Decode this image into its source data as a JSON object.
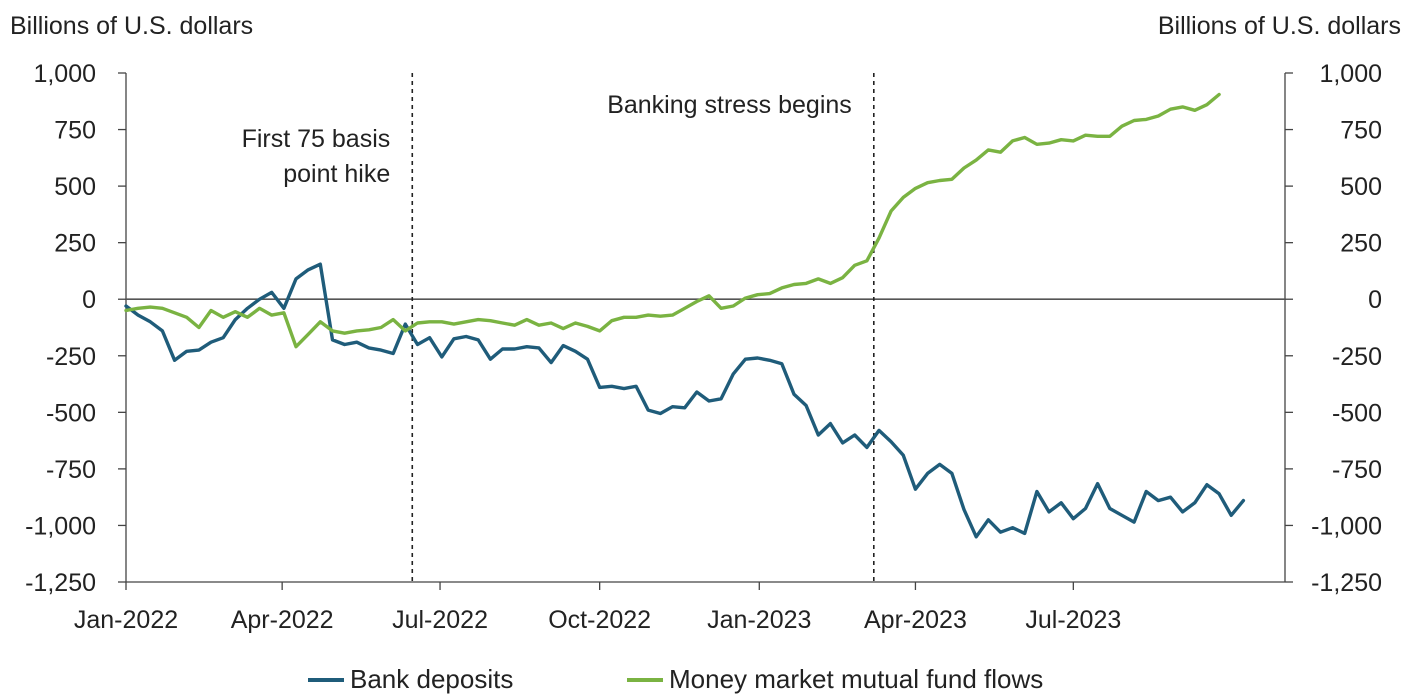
{
  "chart_data": {
    "type": "line",
    "ylabel_left": "Billions of U.S. dollars",
    "ylabel_right": "Billions of U.S. dollars",
    "ylim": [
      -1250,
      1000
    ],
    "y_ticks": [
      1000,
      750,
      500,
      250,
      0,
      -250,
      -500,
      -750,
      -1000,
      -1250
    ],
    "y_tick_labels": [
      "1,000",
      "750",
      "500",
      "250",
      "0",
      "-250",
      "-500",
      "-750",
      "-1,000",
      "-1,250"
    ],
    "x_range": [
      "2022-01-01",
      "2023-10-31"
    ],
    "x_tick_dates": [
      "2022-01-01",
      "2022-04-01",
      "2022-07-01",
      "2022-10-01",
      "2023-01-01",
      "2023-04-01",
      "2023-07-01"
    ],
    "x_tick_labels": [
      "Jan-2022",
      "Apr-2022",
      "Jul-2022",
      "Oct-2022",
      "Jan-2023",
      "Apr-2023",
      "Jul-2023"
    ],
    "grid": false,
    "legend_position": "bottom",
    "annotations": [
      {
        "date": "2022-06-15",
        "lines": [
          "First 75 basis",
          "point hike"
        ]
      },
      {
        "date": "2023-03-08",
        "lines": [
          "Banking stress begins"
        ]
      }
    ],
    "series": [
      {
        "name": "Bank deposits",
        "color": "#1f5c7a",
        "points": [
          [
            "2022-01-01",
            -30
          ],
          [
            "2022-01-08",
            -70
          ],
          [
            "2022-01-15",
            -100
          ],
          [
            "2022-01-22",
            -140
          ],
          [
            "2022-01-29",
            -270
          ],
          [
            "2022-02-05",
            -230
          ],
          [
            "2022-02-12",
            -225
          ],
          [
            "2022-02-19",
            -190
          ],
          [
            "2022-02-26",
            -170
          ],
          [
            "2022-03-05",
            -90
          ],
          [
            "2022-03-12",
            -40
          ],
          [
            "2022-03-19",
            0
          ],
          [
            "2022-03-26",
            30
          ],
          [
            "2022-04-02",
            -40
          ],
          [
            "2022-04-09",
            90
          ],
          [
            "2022-04-16",
            130
          ],
          [
            "2022-04-23",
            155
          ],
          [
            "2022-04-30",
            -180
          ],
          [
            "2022-05-07",
            -200
          ],
          [
            "2022-05-14",
            -190
          ],
          [
            "2022-05-21",
            -215
          ],
          [
            "2022-05-28",
            -225
          ],
          [
            "2022-06-04",
            -240
          ],
          [
            "2022-06-11",
            -110
          ],
          [
            "2022-06-18",
            -200
          ],
          [
            "2022-06-25",
            -170
          ],
          [
            "2022-07-02",
            -255
          ],
          [
            "2022-07-09",
            -175
          ],
          [
            "2022-07-16",
            -165
          ],
          [
            "2022-07-23",
            -180
          ],
          [
            "2022-07-30",
            -265
          ],
          [
            "2022-08-06",
            -220
          ],
          [
            "2022-08-13",
            -220
          ],
          [
            "2022-08-20",
            -210
          ],
          [
            "2022-08-27",
            -215
          ],
          [
            "2022-09-03",
            -280
          ],
          [
            "2022-09-10",
            -205
          ],
          [
            "2022-09-17",
            -230
          ],
          [
            "2022-09-24",
            -265
          ],
          [
            "2022-10-01",
            -390
          ],
          [
            "2022-10-08",
            -385
          ],
          [
            "2022-10-15",
            -395
          ],
          [
            "2022-10-22",
            -385
          ],
          [
            "2022-10-29",
            -490
          ],
          [
            "2022-11-05",
            -505
          ],
          [
            "2022-11-12",
            -475
          ],
          [
            "2022-11-19",
            -480
          ],
          [
            "2022-11-26",
            -410
          ],
          [
            "2022-12-03",
            -450
          ],
          [
            "2022-12-10",
            -440
          ],
          [
            "2022-12-17",
            -330
          ],
          [
            "2022-12-24",
            -265
          ],
          [
            "2022-12-31",
            -260
          ],
          [
            "2023-01-07",
            -270
          ],
          [
            "2023-01-14",
            -285
          ],
          [
            "2023-01-21",
            -420
          ],
          [
            "2023-01-28",
            -470
          ],
          [
            "2023-02-04",
            -600
          ],
          [
            "2023-02-11",
            -550
          ],
          [
            "2023-02-18",
            -635
          ],
          [
            "2023-02-25",
            -600
          ],
          [
            "2023-03-04",
            -655
          ],
          [
            "2023-03-11",
            -580
          ],
          [
            "2023-03-18",
            -630
          ],
          [
            "2023-03-25",
            -690
          ],
          [
            "2023-04-01",
            -840
          ],
          [
            "2023-04-08",
            -770
          ],
          [
            "2023-04-15",
            -730
          ],
          [
            "2023-04-22",
            -770
          ],
          [
            "2023-04-29",
            -930
          ],
          [
            "2023-05-06",
            -1050
          ],
          [
            "2023-05-13",
            -975
          ],
          [
            "2023-05-20",
            -1030
          ],
          [
            "2023-05-27",
            -1010
          ],
          [
            "2023-06-03",
            -1035
          ],
          [
            "2023-06-10",
            -850
          ],
          [
            "2023-06-17",
            -940
          ],
          [
            "2023-06-24",
            -900
          ],
          [
            "2023-07-01",
            -970
          ],
          [
            "2023-07-08",
            -925
          ],
          [
            "2023-07-15",
            -815
          ],
          [
            "2023-07-22",
            -925
          ],
          [
            "2023-07-29",
            -955
          ],
          [
            "2023-08-05",
            -985
          ],
          [
            "2023-08-12",
            -850
          ],
          [
            "2023-08-19",
            -890
          ],
          [
            "2023-08-26",
            -875
          ],
          [
            "2023-09-02",
            -940
          ],
          [
            "2023-09-09",
            -900
          ],
          [
            "2023-09-16",
            -820
          ],
          [
            "2023-09-23",
            -860
          ],
          [
            "2023-09-30",
            -955
          ],
          [
            "2023-10-07",
            -890
          ]
        ]
      },
      {
        "name": "Money market mutual fund flows",
        "color": "#7ab342",
        "points": [
          [
            "2022-01-01",
            -50
          ],
          [
            "2022-01-08",
            -40
          ],
          [
            "2022-01-15",
            -35
          ],
          [
            "2022-01-22",
            -40
          ],
          [
            "2022-01-29",
            -60
          ],
          [
            "2022-02-05",
            -80
          ],
          [
            "2022-02-12",
            -125
          ],
          [
            "2022-02-19",
            -50
          ],
          [
            "2022-02-26",
            -80
          ],
          [
            "2022-03-05",
            -55
          ],
          [
            "2022-03-12",
            -80
          ],
          [
            "2022-03-19",
            -40
          ],
          [
            "2022-03-26",
            -70
          ],
          [
            "2022-04-02",
            -60
          ],
          [
            "2022-04-09",
            -210
          ],
          [
            "2022-04-16",
            -155
          ],
          [
            "2022-04-23",
            -100
          ],
          [
            "2022-04-30",
            -140
          ],
          [
            "2022-05-07",
            -150
          ],
          [
            "2022-05-14",
            -140
          ],
          [
            "2022-05-21",
            -135
          ],
          [
            "2022-05-28",
            -125
          ],
          [
            "2022-06-04",
            -90
          ],
          [
            "2022-06-11",
            -140
          ],
          [
            "2022-06-18",
            -105
          ],
          [
            "2022-06-25",
            -100
          ],
          [
            "2022-07-02",
            -100
          ],
          [
            "2022-07-09",
            -110
          ],
          [
            "2022-07-16",
            -100
          ],
          [
            "2022-07-23",
            -90
          ],
          [
            "2022-07-30",
            -95
          ],
          [
            "2022-08-06",
            -105
          ],
          [
            "2022-08-13",
            -115
          ],
          [
            "2022-08-20",
            -90
          ],
          [
            "2022-08-27",
            -115
          ],
          [
            "2022-09-03",
            -105
          ],
          [
            "2022-09-10",
            -130
          ],
          [
            "2022-09-17",
            -105
          ],
          [
            "2022-09-24",
            -120
          ],
          [
            "2022-10-01",
            -140
          ],
          [
            "2022-10-08",
            -95
          ],
          [
            "2022-10-15",
            -80
          ],
          [
            "2022-10-22",
            -80
          ],
          [
            "2022-10-29",
            -70
          ],
          [
            "2022-11-05",
            -75
          ],
          [
            "2022-11-12",
            -70
          ],
          [
            "2022-11-19",
            -40
          ],
          [
            "2022-11-26",
            -10
          ],
          [
            "2022-12-03",
            15
          ],
          [
            "2022-12-10",
            -40
          ],
          [
            "2022-12-17",
            -30
          ],
          [
            "2022-12-24",
            5
          ],
          [
            "2022-12-31",
            20
          ],
          [
            "2023-01-07",
            25
          ],
          [
            "2023-01-14",
            50
          ],
          [
            "2023-01-21",
            65
          ],
          [
            "2023-01-28",
            70
          ],
          [
            "2023-02-04",
            90
          ],
          [
            "2023-02-11",
            70
          ],
          [
            "2023-02-18",
            95
          ],
          [
            "2023-02-25",
            150
          ],
          [
            "2023-03-04",
            170
          ],
          [
            "2023-03-11",
            270
          ],
          [
            "2023-03-18",
            390
          ],
          [
            "2023-03-25",
            450
          ],
          [
            "2023-04-01",
            490
          ],
          [
            "2023-04-08",
            515
          ],
          [
            "2023-04-15",
            525
          ],
          [
            "2023-04-22",
            530
          ],
          [
            "2023-04-29",
            580
          ],
          [
            "2023-05-06",
            615
          ],
          [
            "2023-05-13",
            660
          ],
          [
            "2023-05-20",
            650
          ],
          [
            "2023-05-27",
            700
          ],
          [
            "2023-06-03",
            715
          ],
          [
            "2023-06-10",
            685
          ],
          [
            "2023-06-17",
            690
          ],
          [
            "2023-06-24",
            705
          ],
          [
            "2023-07-01",
            700
          ],
          [
            "2023-07-08",
            725
          ],
          [
            "2023-07-15",
            720
          ],
          [
            "2023-07-22",
            720
          ],
          [
            "2023-07-29",
            765
          ],
          [
            "2023-08-05",
            790
          ],
          [
            "2023-08-12",
            795
          ],
          [
            "2023-08-19",
            810
          ],
          [
            "2023-08-26",
            840
          ],
          [
            "2023-09-02",
            850
          ],
          [
            "2023-09-09",
            835
          ],
          [
            "2023-09-16",
            860
          ],
          [
            "2023-09-23",
            905
          ]
        ]
      }
    ]
  }
}
